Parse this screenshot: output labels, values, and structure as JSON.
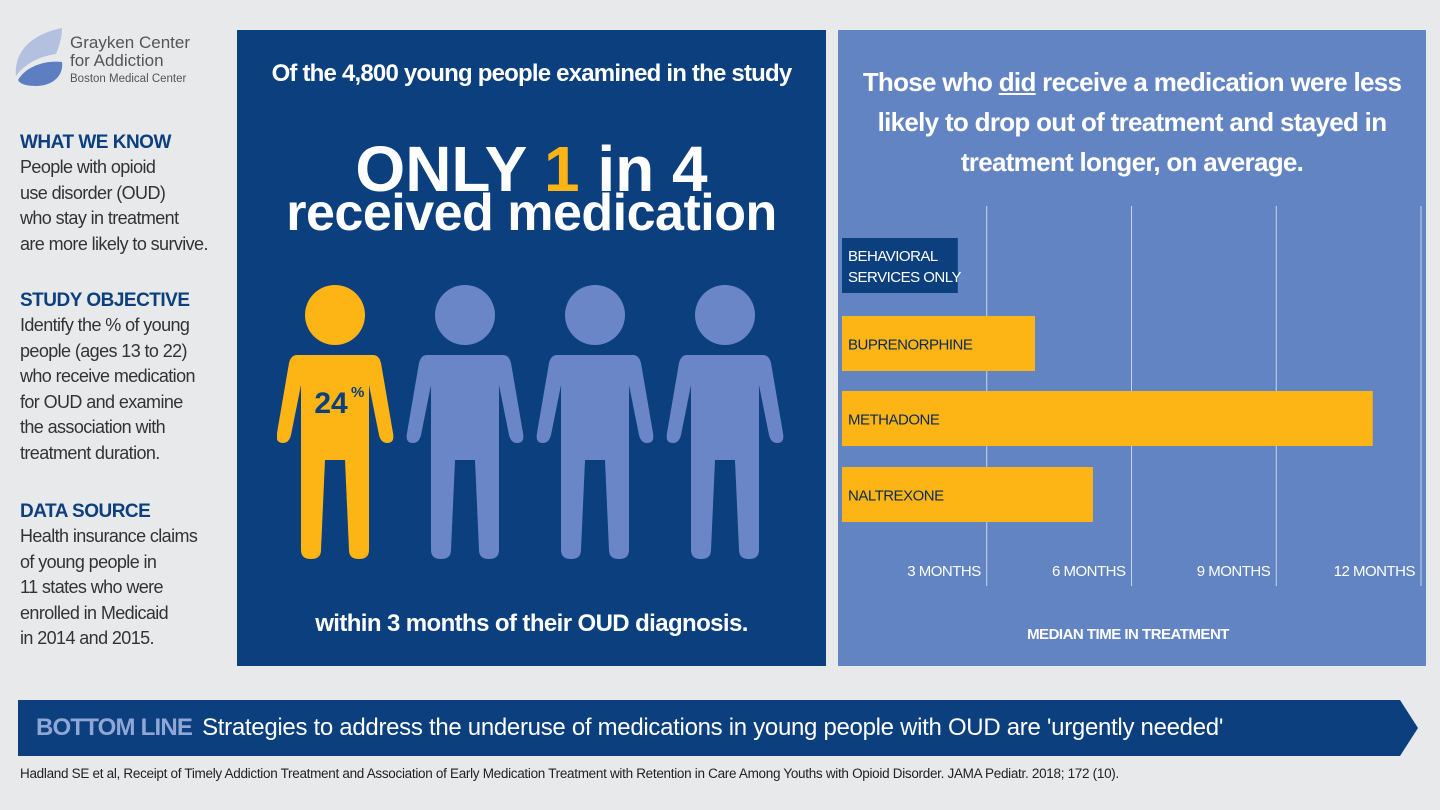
{
  "logo": {
    "line1": "Grayken Center",
    "line2": "for Addiction",
    "line3": "Boston Medical Center"
  },
  "sidebar": {
    "sections": [
      {
        "heading": "WHAT WE KNOW",
        "lines": [
          "People with opioid",
          "use disorder (OUD)",
          "who stay in treatment",
          "are more likely to survive."
        ]
      },
      {
        "heading": "STUDY OBJECTIVE",
        "lines": [
          "Identify the % of young",
          "people (ages 13 to 22)",
          "who receive medication",
          "for OUD and examine",
          "the association with",
          "treatment duration."
        ]
      },
      {
        "heading": "DATA SOURCE",
        "lines": [
          "Health insurance claims",
          "of young people in",
          "11 states who were",
          "enrolled in Medicaid",
          "in 2014 and 2015."
        ]
      }
    ]
  },
  "middle": {
    "intro": "Of the 4,800 young people examined in the study",
    "headline_a": "ONLY ",
    "headline_num": "1",
    "headline_b": " in 4",
    "headline_sub": "received medication",
    "figure_label": "24",
    "figure_label_unit": "%",
    "received_fraction": 0.24,
    "footer": "within 3 months of their OUD diagnosis.",
    "colors": {
      "highlight": "#fdb515",
      "other": "#6a86c6",
      "panel": "#0b3f7e"
    }
  },
  "right": {
    "title_a": "Those who ",
    "title_u": "did",
    "title_b": " receive a medication were less likely to drop out of treatment and stayed in treatment longer, on average."
  },
  "chart_data": {
    "type": "bar",
    "orientation": "horizontal",
    "categories": [
      "BEHAVIORAL SERVICES ONLY",
      "BUPRENORPHINE",
      "METHADONE",
      "NALTREXONE"
    ],
    "category_lines": [
      [
        "BEHAVIORAL",
        "SERVICES ONLY"
      ],
      [
        "BUPRENORPHINE"
      ],
      [
        "METHADONE"
      ],
      [
        "NALTREXONE"
      ]
    ],
    "values": [
      2.4,
      4.0,
      11.0,
      5.2
    ],
    "bar_colors": [
      "#0b3f7e",
      "#fdb515",
      "#fdb515",
      "#fdb515"
    ],
    "xlabel": "MEDIAN TIME IN TREATMENT",
    "xticks": [
      3,
      6,
      9,
      12
    ],
    "xtick_labels": [
      "3 MONTHS",
      "6 MONTHS",
      "9 MONTHS",
      "12 MONTHS"
    ],
    "xlim": [
      0,
      12
    ],
    "grid": true,
    "units": "months"
  },
  "bottom": {
    "label": "BOTTOM LINE",
    "text": "Strategies to address the underuse of medications in young people with OUD are 'urgently needed'"
  },
  "citation": "Hadland SE et al, Receipt of Timely Addiction Treatment and Association of Early Medication Treatment with Retention in Care Among Youths with Opioid Disorder. JAMA Pediatr. 2018; 172 (10)."
}
